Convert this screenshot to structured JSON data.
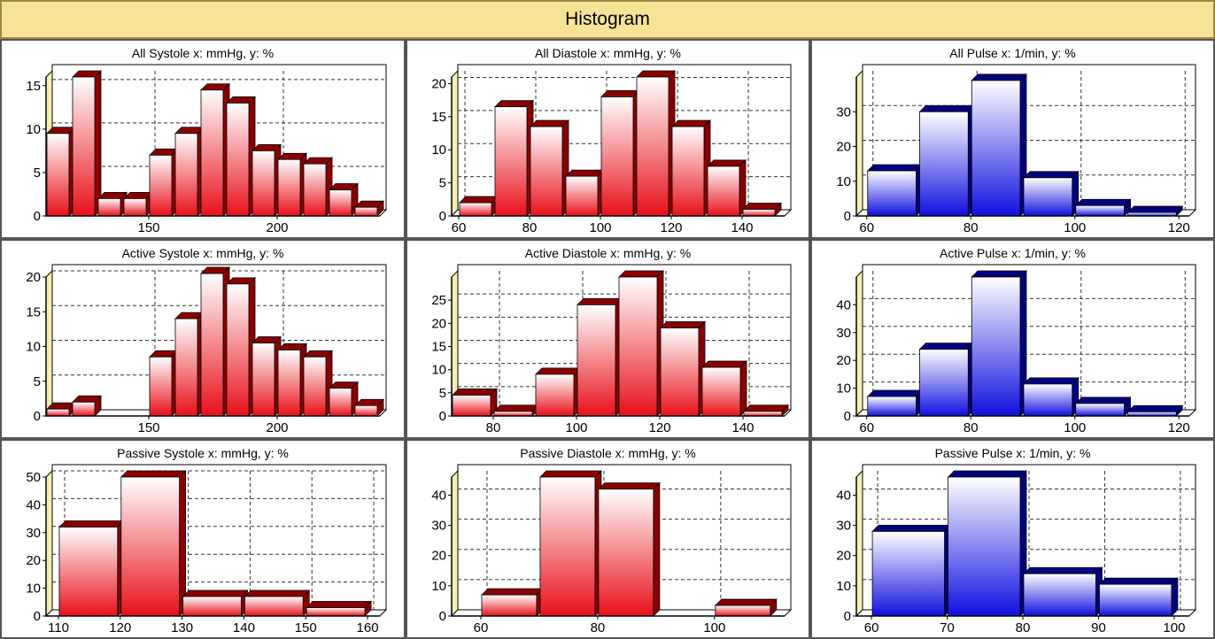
{
  "header": {
    "title": "Histogram"
  },
  "colors": {
    "header_bg": "#f7e395",
    "red_top": "#ffffff",
    "red_bottom": "#e8101a",
    "red_dark": "#8a0000",
    "blue_top": "#ffffff",
    "blue_bottom": "#1010e0",
    "blue_dark": "#000080"
  },
  "chart_data": [
    {
      "type": "bar",
      "title": "All Systole x: mmHg, y: %",
      "color": "red",
      "xlim": [
        110,
        240
      ],
      "ylim": [
        0,
        16
      ],
      "xticks": [
        150,
        200
      ],
      "yticks": [
        0,
        5,
        10,
        15
      ],
      "bin_width": 10,
      "bars": [
        {
          "x": 115,
          "y": 9.5
        },
        {
          "x": 125,
          "y": 16
        },
        {
          "x": 135,
          "y": 2
        },
        {
          "x": 145,
          "y": 2
        },
        {
          "x": 155,
          "y": 7
        },
        {
          "x": 165,
          "y": 9.5
        },
        {
          "x": 175,
          "y": 14.5
        },
        {
          "x": 185,
          "y": 13
        },
        {
          "x": 195,
          "y": 7.5
        },
        {
          "x": 205,
          "y": 6.5
        },
        {
          "x": 215,
          "y": 6
        },
        {
          "x": 225,
          "y": 3
        },
        {
          "x": 235,
          "y": 1
        }
      ]
    },
    {
      "type": "bar",
      "title": "All Diastole x: mmHg, y: %",
      "color": "red",
      "xlim": [
        58,
        152
      ],
      "ylim": [
        0,
        21
      ],
      "xticks": [
        60,
        80,
        100,
        120,
        140
      ],
      "yticks": [
        0,
        5,
        10,
        15,
        20
      ],
      "bin_width": 10,
      "bars": [
        {
          "x": 65,
          "y": 2
        },
        {
          "x": 75,
          "y": 16.5
        },
        {
          "x": 85,
          "y": 13.5
        },
        {
          "x": 95,
          "y": 6
        },
        {
          "x": 105,
          "y": 18
        },
        {
          "x": 115,
          "y": 21
        },
        {
          "x": 125,
          "y": 13.5
        },
        {
          "x": 135,
          "y": 7.5
        },
        {
          "x": 145,
          "y": 1
        }
      ]
    },
    {
      "type": "bar",
      "title": "All Pulse x: 1/min, y: %",
      "color": "blue",
      "xlim": [
        58,
        122
      ],
      "ylim": [
        0,
        40
      ],
      "xticks": [
        60,
        80,
        100,
        120
      ],
      "yticks": [
        0,
        10,
        20,
        30
      ],
      "bin_width": 10,
      "bars": [
        {
          "x": 65,
          "y": 13
        },
        {
          "x": 75,
          "y": 30
        },
        {
          "x": 85,
          "y": 39
        },
        {
          "x": 95,
          "y": 11
        },
        {
          "x": 105,
          "y": 3
        },
        {
          "x": 115,
          "y": 1
        }
      ]
    },
    {
      "type": "bar",
      "title": "Active Systole x: mmHg, y: %",
      "color": "red",
      "xlim": [
        110,
        240
      ],
      "ylim": [
        0,
        20
      ],
      "xticks": [
        150,
        200
      ],
      "yticks": [
        0,
        5,
        10,
        15,
        20
      ],
      "bin_width": 10,
      "bars": [
        {
          "x": 115,
          "y": 1
        },
        {
          "x": 125,
          "y": 2
        },
        {
          "x": 155,
          "y": 8.5
        },
        {
          "x": 165,
          "y": 14
        },
        {
          "x": 175,
          "y": 20.5
        },
        {
          "x": 185,
          "y": 19
        },
        {
          "x": 195,
          "y": 10.5
        },
        {
          "x": 205,
          "y": 9.5
        },
        {
          "x": 215,
          "y": 8.5
        },
        {
          "x": 225,
          "y": 4
        },
        {
          "x": 235,
          "y": 1.5
        }
      ]
    },
    {
      "type": "bar",
      "title": "Active Diastole x: mmHg, y: %",
      "color": "red",
      "xlim": [
        70,
        150
      ],
      "ylim": [
        0,
        30
      ],
      "xticks": [
        80,
        100,
        120,
        140
      ],
      "yticks": [
        0,
        5,
        10,
        15,
        20,
        25
      ],
      "bin_width": 10,
      "bars": [
        {
          "x": 75,
          "y": 4.5
        },
        {
          "x": 85,
          "y": 1
        },
        {
          "x": 95,
          "y": 9
        },
        {
          "x": 105,
          "y": 24
        },
        {
          "x": 115,
          "y": 30
        },
        {
          "x": 125,
          "y": 19
        },
        {
          "x": 135,
          "y": 10.5
        },
        {
          "x": 145,
          "y": 1
        }
      ]
    },
    {
      "type": "bar",
      "title": "Active Pulse x: 1/min, y: %",
      "color": "blue",
      "xlim": [
        58,
        122
      ],
      "ylim": [
        0,
        50
      ],
      "xticks": [
        60,
        80,
        100,
        120
      ],
      "yticks": [
        0,
        10,
        20,
        30,
        40
      ],
      "bin_width": 10,
      "bars": [
        {
          "x": 65,
          "y": 7
        },
        {
          "x": 75,
          "y": 24
        },
        {
          "x": 85,
          "y": 50
        },
        {
          "x": 95,
          "y": 11.5
        },
        {
          "x": 105,
          "y": 4.5
        },
        {
          "x": 115,
          "y": 1.5
        }
      ]
    },
    {
      "type": "bar",
      "title": "Passive Systole x: mmHg, y: %",
      "color": "red",
      "xlim": [
        108,
        162
      ],
      "ylim": [
        0,
        50
      ],
      "xticks": [
        110,
        120,
        130,
        140,
        150,
        160
      ],
      "yticks": [
        0,
        10,
        20,
        30,
        40,
        50
      ],
      "bin_width": 10,
      "bars": [
        {
          "x": 115,
          "y": 32
        },
        {
          "x": 125,
          "y": 50
        },
        {
          "x": 135,
          "y": 7
        },
        {
          "x": 145,
          "y": 7
        },
        {
          "x": 155,
          "y": 3
        }
      ]
    },
    {
      "type": "bar",
      "title": "Passive Diastole x: mmHg, y: %",
      "color": "red",
      "xlim": [
        55,
        112
      ],
      "ylim": [
        0,
        46
      ],
      "xticks": [
        60,
        80,
        100
      ],
      "yticks": [
        0,
        10,
        20,
        30,
        40
      ],
      "bin_width": 10,
      "bars": [
        {
          "x": 65,
          "y": 7
        },
        {
          "x": 75,
          "y": 46
        },
        {
          "x": 85,
          "y": 42
        },
        {
          "x": 105,
          "y": 3.5
        }
      ]
    },
    {
      "type": "bar",
      "title": "Passive Pulse x: 1/min, y: %",
      "color": "blue",
      "xlim": [
        58,
        102
      ],
      "ylim": [
        0,
        46
      ],
      "xticks": [
        60,
        70,
        80,
        90,
        100
      ],
      "yticks": [
        0,
        10,
        20,
        30,
        40
      ],
      "bin_width": 10,
      "bars": [
        {
          "x": 65,
          "y": 28
        },
        {
          "x": 75,
          "y": 46
        },
        {
          "x": 85,
          "y": 14
        },
        {
          "x": 95,
          "y": 10.5
        }
      ]
    }
  ]
}
